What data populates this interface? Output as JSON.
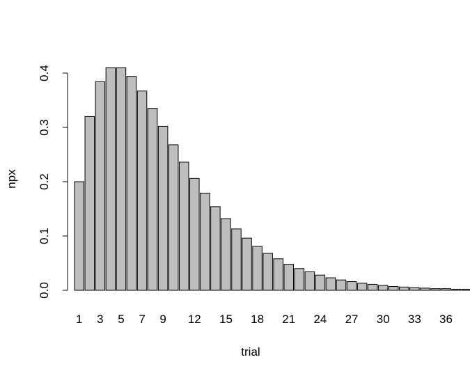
{
  "chart_data": {
    "type": "bar",
    "xlabel": "trial",
    "ylabel": "npx",
    "ylim": [
      0,
      0.4
    ],
    "yticks": [
      0.0,
      0.1,
      0.2,
      0.3,
      0.4
    ],
    "ytick_labels": [
      "0.0",
      "0.1",
      "0.2",
      "0.3",
      "0.4"
    ],
    "categories": [
      "1",
      "2",
      "3",
      "4",
      "5",
      "6",
      "7",
      "8",
      "9",
      "10",
      "11",
      "12",
      "13",
      "14",
      "15",
      "16",
      "17",
      "18",
      "19",
      "20",
      "21",
      "22",
      "23",
      "24",
      "25",
      "26",
      "27",
      "28",
      "29",
      "30",
      "31",
      "32",
      "33",
      "34",
      "35",
      "36",
      "37",
      "38"
    ],
    "xtick_labels_shown": [
      "1",
      "3",
      "5",
      "7",
      "9",
      "12",
      "15",
      "18",
      "21",
      "24",
      "27",
      "30",
      "33",
      "36"
    ],
    "values": [
      0.2,
      0.32,
      0.384,
      0.41,
      0.41,
      0.394,
      0.367,
      0.335,
      0.302,
      0.268,
      0.236,
      0.206,
      0.179,
      0.154,
      0.132,
      0.113,
      0.096,
      0.081,
      0.068,
      0.058,
      0.048,
      0.04,
      0.034,
      0.028,
      0.023,
      0.019,
      0.016,
      0.013,
      0.011,
      0.009,
      0.007,
      0.006,
      0.005,
      0.004,
      0.003,
      0.003,
      0.002,
      0.002
    ],
    "bar_color": "#bebebe",
    "grid": false,
    "legend": false
  }
}
